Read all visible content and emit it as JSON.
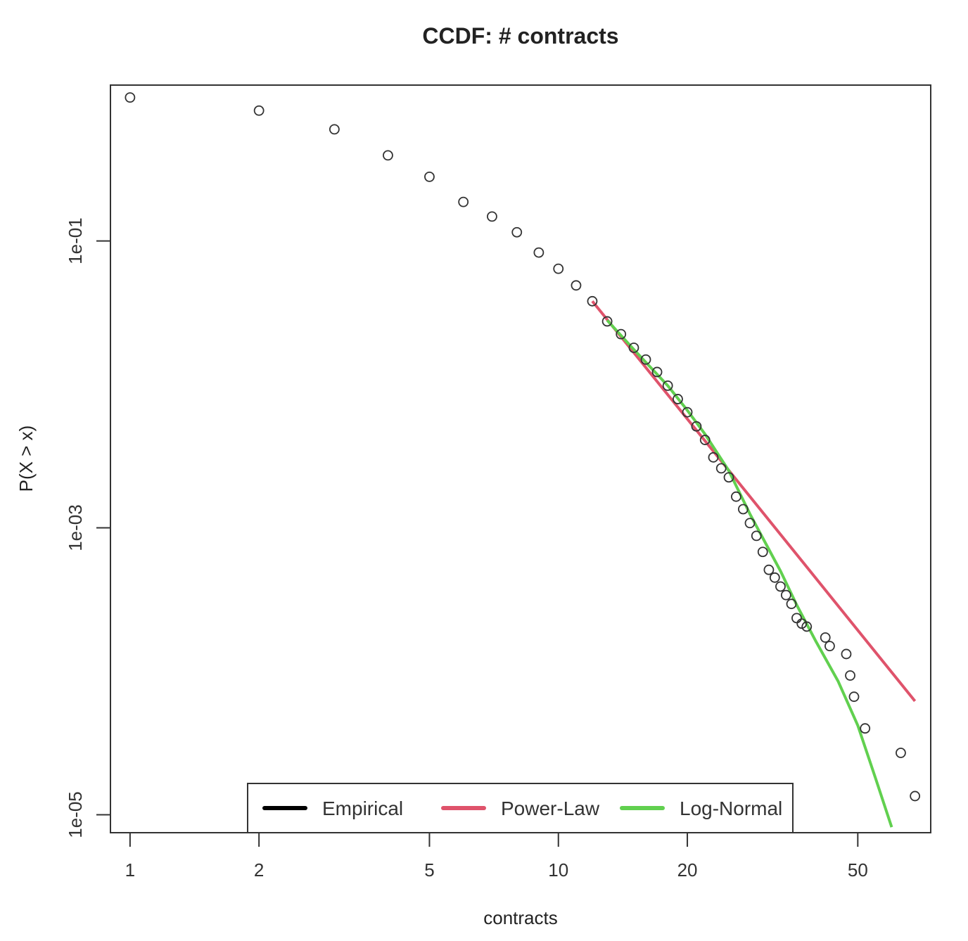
{
  "chart_data": {
    "type": "scatter",
    "title": "CCDF: # contracts",
    "xlabel": "contracts",
    "ylabel": "P(X > x)",
    "xscale": "log",
    "yscale": "log",
    "xlim": [
      0.9,
      74
    ],
    "ylim": [
      7.5e-06,
      1.22
    ],
    "x_ticks": [
      1,
      2,
      5,
      10,
      20,
      50
    ],
    "x_tick_labels": [
      "1",
      "2",
      "5",
      "10",
      "20",
      "50"
    ],
    "y_ticks": [
      0.1,
      0.001,
      1e-05
    ],
    "y_tick_labels": [
      "1e-01",
      "1e-03",
      "1e-05"
    ],
    "legend": {
      "position": "bottom-center",
      "entries": [
        {
          "label": "Empirical",
          "color": "#000000"
        },
        {
          "label": "Power-Law",
          "color": "#DF536B"
        },
        {
          "label": "Log-Normal",
          "color": "#61D04F"
        }
      ]
    },
    "series": [
      {
        "name": "Empirical",
        "kind": "points",
        "color": "#000000",
        "points": [
          [
            1,
            1.0
          ],
          [
            2,
            0.81
          ],
          [
            3,
            0.6
          ],
          [
            4,
            0.395
          ],
          [
            5,
            0.28
          ],
          [
            6,
            0.187
          ],
          [
            7,
            0.148
          ],
          [
            8,
            0.115
          ],
          [
            9,
            0.083
          ],
          [
            10,
            0.064
          ],
          [
            11,
            0.049
          ],
          [
            12,
            0.038
          ],
          [
            13,
            0.0275
          ],
          [
            14,
            0.0224
          ],
          [
            15,
            0.018
          ],
          [
            16,
            0.0149
          ],
          [
            17,
            0.0122
          ],
          [
            18,
            0.0098
          ],
          [
            19,
            0.0079
          ],
          [
            20,
            0.0064
          ],
          [
            21,
            0.0051
          ],
          [
            22,
            0.0041
          ],
          [
            23,
            0.0031
          ],
          [
            24,
            0.0026
          ],
          [
            25,
            0.00225
          ],
          [
            26,
            0.00165
          ],
          [
            27,
            0.00135
          ],
          [
            28,
            0.00108
          ],
          [
            29,
            0.00088
          ],
          [
            30,
            0.00068
          ],
          [
            31,
            0.00051
          ],
          [
            32,
            0.00045
          ],
          [
            33,
            0.00039
          ],
          [
            34,
            0.00034
          ],
          [
            35,
            0.000295
          ],
          [
            36,
            0.000235
          ],
          [
            37,
            0.000215
          ],
          [
            38,
            0.000205
          ],
          [
            42,
            0.000172
          ],
          [
            43,
            0.00015
          ],
          [
            47,
            0.000132
          ],
          [
            48,
            9.35e-05
          ],
          [
            49,
            6.65e-05
          ],
          [
            52,
            4e-05
          ],
          [
            63,
            2.7e-05
          ],
          [
            68,
            1.35e-05
          ]
        ]
      },
      {
        "name": "Power-Law",
        "kind": "line",
        "color": "#DF536B",
        "points": [
          [
            12,
            0.038
          ],
          [
            68,
            6.2e-05
          ]
        ]
      },
      {
        "name": "Log-Normal",
        "kind": "line",
        "color": "#61D04F",
        "points": [
          [
            13,
            0.028
          ],
          [
            15,
            0.0175
          ],
          [
            18,
            0.0098
          ],
          [
            20,
            0.0066
          ],
          [
            22,
            0.0045
          ],
          [
            25,
            0.0025
          ],
          [
            28,
            0.00125
          ],
          [
            30,
            0.00085
          ],
          [
            33,
            0.0005
          ],
          [
            36,
            0.00029
          ],
          [
            40,
            0.00016
          ],
          [
            45,
            8.5e-05
          ],
          [
            50,
            4.2e-05
          ],
          [
            55,
            1.8e-05
          ],
          [
            60,
            8.2e-06
          ]
        ]
      }
    ]
  }
}
